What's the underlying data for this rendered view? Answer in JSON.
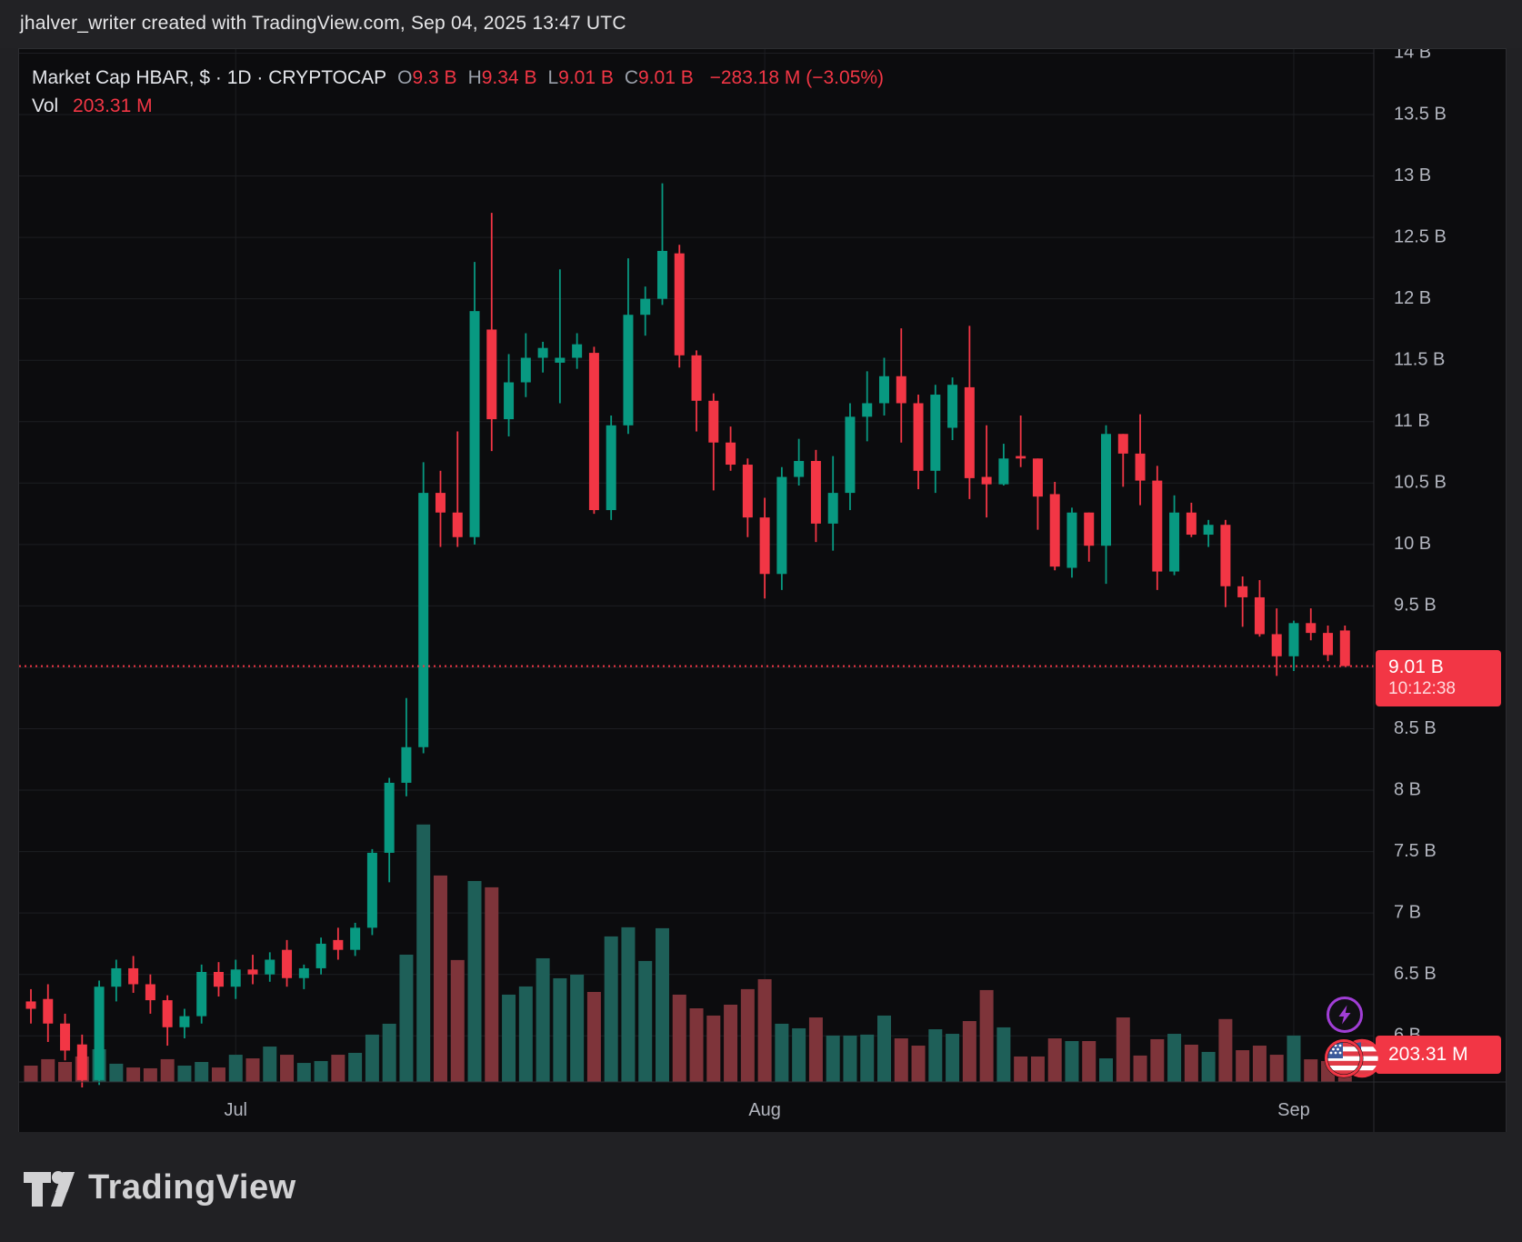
{
  "attribution": "jhalver_writer created with TradingView.com, Sep 04, 2025 13:47 UTC",
  "legend": {
    "title": "Market Cap HBAR, $ · 1D · CRYPTOCAP",
    "ohlc": [
      {
        "k": "O",
        "v": "9.3 B"
      },
      {
        "k": "H",
        "v": "9.34 B"
      },
      {
        "k": "L",
        "v": "9.01 B"
      },
      {
        "k": "C",
        "v": "9.01 B"
      }
    ],
    "change": "−283.18 M (−3.05%)",
    "vol_label": "Vol",
    "vol_value": "203.31 M"
  },
  "badges": {
    "price_value": "9.01 B",
    "countdown": "10:12:38",
    "volume": "203.31 M"
  },
  "logo_text": "TradingView",
  "icons": {
    "lightning_marker": "lightning-icon",
    "event_flags": "us-flag-icon"
  },
  "colors": {
    "up": "#089981",
    "down": "#f23645",
    "vol_up": "#1e5f58",
    "vol_down": "#7e343a",
    "accent_badge": "#f23645",
    "axis_text": "#b2b5be",
    "grid": "#1d1e22",
    "purple": "#a13ed6",
    "chart_bg": "#0c0c0e",
    "page_bg": "#212124"
  },
  "chart_data": {
    "type": "candlestick+volume",
    "symbol": "Market Cap HBAR",
    "currency": "$",
    "interval": "1D",
    "exchange": "CRYPTOCAP",
    "title": "Market Cap HBAR, $ · 1D · CRYPTOCAP",
    "last_price": 9.01,
    "price_line_value": 9.01,
    "price_unit": "B",
    "volume_unit": "M",
    "ylim": [
      5.6,
      14.1
    ],
    "grid": true,
    "price_ticks": [
      {
        "label": "14 B",
        "value": 14
      },
      {
        "label": "13.5 B",
        "value": 13.5
      },
      {
        "label": "13 B",
        "value": 13
      },
      {
        "label": "12.5 B",
        "value": 12.5
      },
      {
        "label": "12 B",
        "value": 12
      },
      {
        "label": "11.5 B",
        "value": 11.5
      },
      {
        "label": "11 B",
        "value": 11
      },
      {
        "label": "10.5 B",
        "value": 10.5
      },
      {
        "label": "10 B",
        "value": 10
      },
      {
        "label": "9.5 B",
        "value": 9.5
      },
      {
        "label": "",
        "value": 9
      },
      {
        "label": "8.5 B",
        "value": 8.5
      },
      {
        "label": "8 B",
        "value": 8
      },
      {
        "label": "7.5 B",
        "value": 7.5
      },
      {
        "label": "7 B",
        "value": 7
      },
      {
        "label": "6.5 B",
        "value": 6.5
      },
      {
        "label": "6 B",
        "value": 6
      }
    ],
    "time_ticks": [
      {
        "label": "Jul",
        "index": 12
      },
      {
        "label": "Aug",
        "index": 43
      },
      {
        "label": "Sep",
        "index": 74
      }
    ],
    "candles": [
      {
        "d": "Jun 19",
        "o": 6.28,
        "h": 6.38,
        "l": 6.1,
        "c": 6.22,
        "v": 122
      },
      {
        "d": "Jun 20",
        "o": 6.3,
        "h": 6.42,
        "l": 5.95,
        "c": 6.1,
        "v": 170
      },
      {
        "d": "Jun 21",
        "o": 6.1,
        "h": 6.18,
        "l": 5.8,
        "c": 5.88,
        "v": 149
      },
      {
        "d": "Jun 22",
        "o": 5.93,
        "h": 6.01,
        "l": 5.58,
        "c": 5.64,
        "v": 190
      },
      {
        "d": "Jun 23",
        "o": 5.64,
        "h": 6.45,
        "l": 5.6,
        "c": 6.4,
        "v": 244
      },
      {
        "d": "Jun 24",
        "o": 6.4,
        "h": 6.62,
        "l": 6.28,
        "c": 6.55,
        "v": 136
      },
      {
        "d": "Jun 25",
        "o": 6.55,
        "h": 6.65,
        "l": 6.35,
        "c": 6.42,
        "v": 108
      },
      {
        "d": "Jun 26",
        "o": 6.42,
        "h": 6.5,
        "l": 6.18,
        "c": 6.29,
        "v": 102
      },
      {
        "d": "Jun 27",
        "o": 6.29,
        "h": 6.33,
        "l": 5.92,
        "c": 6.07,
        "v": 170
      },
      {
        "d": "Jun 28",
        "o": 6.07,
        "h": 6.22,
        "l": 5.98,
        "c": 6.16,
        "v": 122
      },
      {
        "d": "Jun 29",
        "o": 6.16,
        "h": 6.58,
        "l": 6.1,
        "c": 6.52,
        "v": 149
      },
      {
        "d": "Jun 30",
        "o": 6.52,
        "h": 6.6,
        "l": 6.32,
        "c": 6.4,
        "v": 108
      },
      {
        "d": "Jul 1",
        "o": 6.4,
        "h": 6.62,
        "l": 6.3,
        "c": 6.54,
        "v": 203
      },
      {
        "d": "Jul 2",
        "o": 6.54,
        "h": 6.66,
        "l": 6.42,
        "c": 6.5,
        "v": 176
      },
      {
        "d": "Jul 3",
        "o": 6.5,
        "h": 6.68,
        "l": 6.44,
        "c": 6.62,
        "v": 264
      },
      {
        "d": "Jul 4",
        "o": 6.7,
        "h": 6.78,
        "l": 6.4,
        "c": 6.47,
        "v": 203
      },
      {
        "d": "Jul 5",
        "o": 6.47,
        "h": 6.58,
        "l": 6.38,
        "c": 6.55,
        "v": 142
      },
      {
        "d": "Jul 6",
        "o": 6.55,
        "h": 6.8,
        "l": 6.5,
        "c": 6.75,
        "v": 156
      },
      {
        "d": "Jul 7",
        "o": 6.78,
        "h": 6.88,
        "l": 6.62,
        "c": 6.7,
        "v": 203
      },
      {
        "d": "Jul 8",
        "o": 6.7,
        "h": 6.92,
        "l": 6.65,
        "c": 6.88,
        "v": 217
      },
      {
        "d": "Jul 9",
        "o": 6.88,
        "h": 7.52,
        "l": 6.82,
        "c": 7.49,
        "v": 353
      },
      {
        "d": "Jul 10",
        "o": 7.49,
        "h": 8.1,
        "l": 7.25,
        "c": 8.06,
        "v": 434
      },
      {
        "d": "Jul 11",
        "o": 8.06,
        "h": 8.75,
        "l": 7.95,
        "c": 8.35,
        "v": 949
      },
      {
        "d": "Jul 12",
        "o": 8.35,
        "h": 10.67,
        "l": 8.3,
        "c": 10.42,
        "v": 1919
      },
      {
        "d": "Jul 13",
        "o": 10.42,
        "h": 10.6,
        "l": 9.98,
        "c": 10.26,
        "v": 1539
      },
      {
        "d": "Jul 14",
        "o": 10.26,
        "h": 10.92,
        "l": 9.98,
        "c": 10.06,
        "v": 909
      },
      {
        "d": "Jul 15",
        "o": 10.06,
        "h": 12.3,
        "l": 10.0,
        "c": 11.9,
        "v": 1498
      },
      {
        "d": "Jul 16",
        "o": 11.75,
        "h": 12.7,
        "l": 10.76,
        "c": 11.02,
        "v": 1451
      },
      {
        "d": "Jul 17",
        "o": 11.02,
        "h": 11.55,
        "l": 10.88,
        "c": 11.32,
        "v": 651
      },
      {
        "d": "Jul 18",
        "o": 11.32,
        "h": 11.72,
        "l": 11.2,
        "c": 11.52,
        "v": 712
      },
      {
        "d": "Jul 19",
        "o": 11.52,
        "h": 11.65,
        "l": 11.4,
        "c": 11.6,
        "v": 922
      },
      {
        "d": "Jul 20",
        "o": 11.48,
        "h": 12.24,
        "l": 11.15,
        "c": 11.52,
        "v": 773
      },
      {
        "d": "Jul 21",
        "o": 11.52,
        "h": 11.72,
        "l": 11.43,
        "c": 11.63,
        "v": 800
      },
      {
        "d": "Jul 22",
        "o": 11.56,
        "h": 11.61,
        "l": 10.25,
        "c": 10.28,
        "v": 671
      },
      {
        "d": "Jul 23",
        "o": 10.28,
        "h": 11.05,
        "l": 10.2,
        "c": 10.97,
        "v": 1085
      },
      {
        "d": "Jul 24",
        "o": 10.97,
        "h": 12.33,
        "l": 10.9,
        "c": 11.87,
        "v": 1153
      },
      {
        "d": "Jul 25",
        "o": 11.87,
        "h": 12.1,
        "l": 11.7,
        "c": 12.0,
        "v": 902
      },
      {
        "d": "Jul 26",
        "o": 12.0,
        "h": 12.94,
        "l": 11.95,
        "c": 12.39,
        "v": 1146
      },
      {
        "d": "Jul 27",
        "o": 12.37,
        "h": 12.44,
        "l": 11.44,
        "c": 11.54,
        "v": 651
      },
      {
        "d": "Jul 28",
        "o": 11.54,
        "h": 11.58,
        "l": 10.92,
        "c": 11.17,
        "v": 549
      },
      {
        "d": "Jul 29",
        "o": 11.17,
        "h": 11.23,
        "l": 10.44,
        "c": 10.83,
        "v": 495
      },
      {
        "d": "Jul 30",
        "o": 10.83,
        "h": 10.96,
        "l": 10.6,
        "c": 10.65,
        "v": 576
      },
      {
        "d": "Jul 31",
        "o": 10.65,
        "h": 10.7,
        "l": 10.06,
        "c": 10.22,
        "v": 692
      },
      {
        "d": "Aug 1",
        "o": 10.22,
        "h": 10.38,
        "l": 9.56,
        "c": 9.76,
        "v": 766
      },
      {
        "d": "Aug 2",
        "o": 9.76,
        "h": 10.63,
        "l": 9.63,
        "c": 10.55,
        "v": 434
      },
      {
        "d": "Aug 3",
        "o": 10.55,
        "h": 10.86,
        "l": 10.48,
        "c": 10.68,
        "v": 400
      },
      {
        "d": "Aug 4",
        "o": 10.68,
        "h": 10.77,
        "l": 10.02,
        "c": 10.17,
        "v": 481
      },
      {
        "d": "Aug 5",
        "o": 10.17,
        "h": 10.72,
        "l": 9.95,
        "c": 10.42,
        "v": 346
      },
      {
        "d": "Aug 6",
        "o": 10.42,
        "h": 11.15,
        "l": 10.28,
        "c": 11.04,
        "v": 346
      },
      {
        "d": "Aug 7",
        "o": 11.04,
        "h": 11.41,
        "l": 10.84,
        "c": 11.15,
        "v": 353
      },
      {
        "d": "Aug 8",
        "o": 11.15,
        "h": 11.52,
        "l": 11.05,
        "c": 11.37,
        "v": 495
      },
      {
        "d": "Aug 9",
        "o": 11.37,
        "h": 11.76,
        "l": 10.83,
        "c": 11.15,
        "v": 325
      },
      {
        "d": "Aug 10",
        "o": 11.15,
        "h": 11.22,
        "l": 10.45,
        "c": 10.6,
        "v": 271
      },
      {
        "d": "Aug 11",
        "o": 10.6,
        "h": 11.3,
        "l": 10.42,
        "c": 11.22,
        "v": 393
      },
      {
        "d": "Aug 12",
        "o": 10.95,
        "h": 11.36,
        "l": 10.85,
        "c": 11.3,
        "v": 359
      },
      {
        "d": "Aug 13",
        "o": 11.28,
        "h": 11.78,
        "l": 10.37,
        "c": 10.54,
        "v": 454
      },
      {
        "d": "Aug 14",
        "o": 10.55,
        "h": 10.97,
        "l": 10.22,
        "c": 10.49,
        "v": 685
      },
      {
        "d": "Aug 15",
        "o": 10.49,
        "h": 10.82,
        "l": 10.48,
        "c": 10.7,
        "v": 407
      },
      {
        "d": "Aug 16",
        "o": 10.72,
        "h": 11.05,
        "l": 10.63,
        "c": 10.7,
        "v": 190
      },
      {
        "d": "Aug 17",
        "o": 10.7,
        "h": 10.7,
        "l": 10.12,
        "c": 10.39,
        "v": 190
      },
      {
        "d": "Aug 18",
        "o": 10.41,
        "h": 10.51,
        "l": 9.79,
        "c": 9.82,
        "v": 325
      },
      {
        "d": "Aug 19",
        "o": 9.81,
        "h": 10.3,
        "l": 9.73,
        "c": 10.26,
        "v": 305
      },
      {
        "d": "Aug 20",
        "o": 10.26,
        "h": 10.26,
        "l": 9.86,
        "c": 9.99,
        "v": 305
      },
      {
        "d": "Aug 21",
        "o": 9.99,
        "h": 10.97,
        "l": 9.68,
        "c": 10.9,
        "v": 176
      },
      {
        "d": "Aug 22",
        "o": 10.9,
        "h": 10.9,
        "l": 10.47,
        "c": 10.74,
        "v": 481
      },
      {
        "d": "Aug 23",
        "o": 10.74,
        "h": 11.06,
        "l": 10.32,
        "c": 10.52,
        "v": 197
      },
      {
        "d": "Aug 24",
        "o": 10.52,
        "h": 10.64,
        "l": 9.63,
        "c": 9.78,
        "v": 319
      },
      {
        "d": "Aug 25",
        "o": 9.78,
        "h": 10.4,
        "l": 9.75,
        "c": 10.26,
        "v": 359
      },
      {
        "d": "Aug 26",
        "o": 10.26,
        "h": 10.34,
        "l": 10.06,
        "c": 10.08,
        "v": 278
      },
      {
        "d": "Aug 27",
        "o": 10.08,
        "h": 10.2,
        "l": 9.98,
        "c": 10.16,
        "v": 224
      },
      {
        "d": "Aug 28",
        "o": 10.16,
        "h": 10.2,
        "l": 9.49,
        "c": 9.66,
        "v": 469
      },
      {
        "d": "Aug 29",
        "o": 9.66,
        "h": 9.74,
        "l": 9.33,
        "c": 9.57,
        "v": 237
      },
      {
        "d": "Aug 30",
        "o": 9.57,
        "h": 9.71,
        "l": 9.25,
        "c": 9.27,
        "v": 271
      },
      {
        "d": "Aug 31",
        "o": 9.27,
        "h": 9.48,
        "l": 8.93,
        "c": 9.09,
        "v": 203
      },
      {
        "d": "Sep 1",
        "o": 9.09,
        "h": 9.38,
        "l": 8.97,
        "c": 9.36,
        "v": 346
      },
      {
        "d": "Sep 2",
        "o": 9.36,
        "h": 9.48,
        "l": 9.22,
        "c": 9.28,
        "v": 169
      },
      {
        "d": "Sep 3",
        "o": 9.28,
        "h": 9.34,
        "l": 9.05,
        "c": 9.1,
        "v": 156
      },
      {
        "d": "Sep 4",
        "o": 9.3,
        "h": 9.34,
        "l": 9.01,
        "c": 9.01,
        "v": 203.31
      }
    ]
  }
}
